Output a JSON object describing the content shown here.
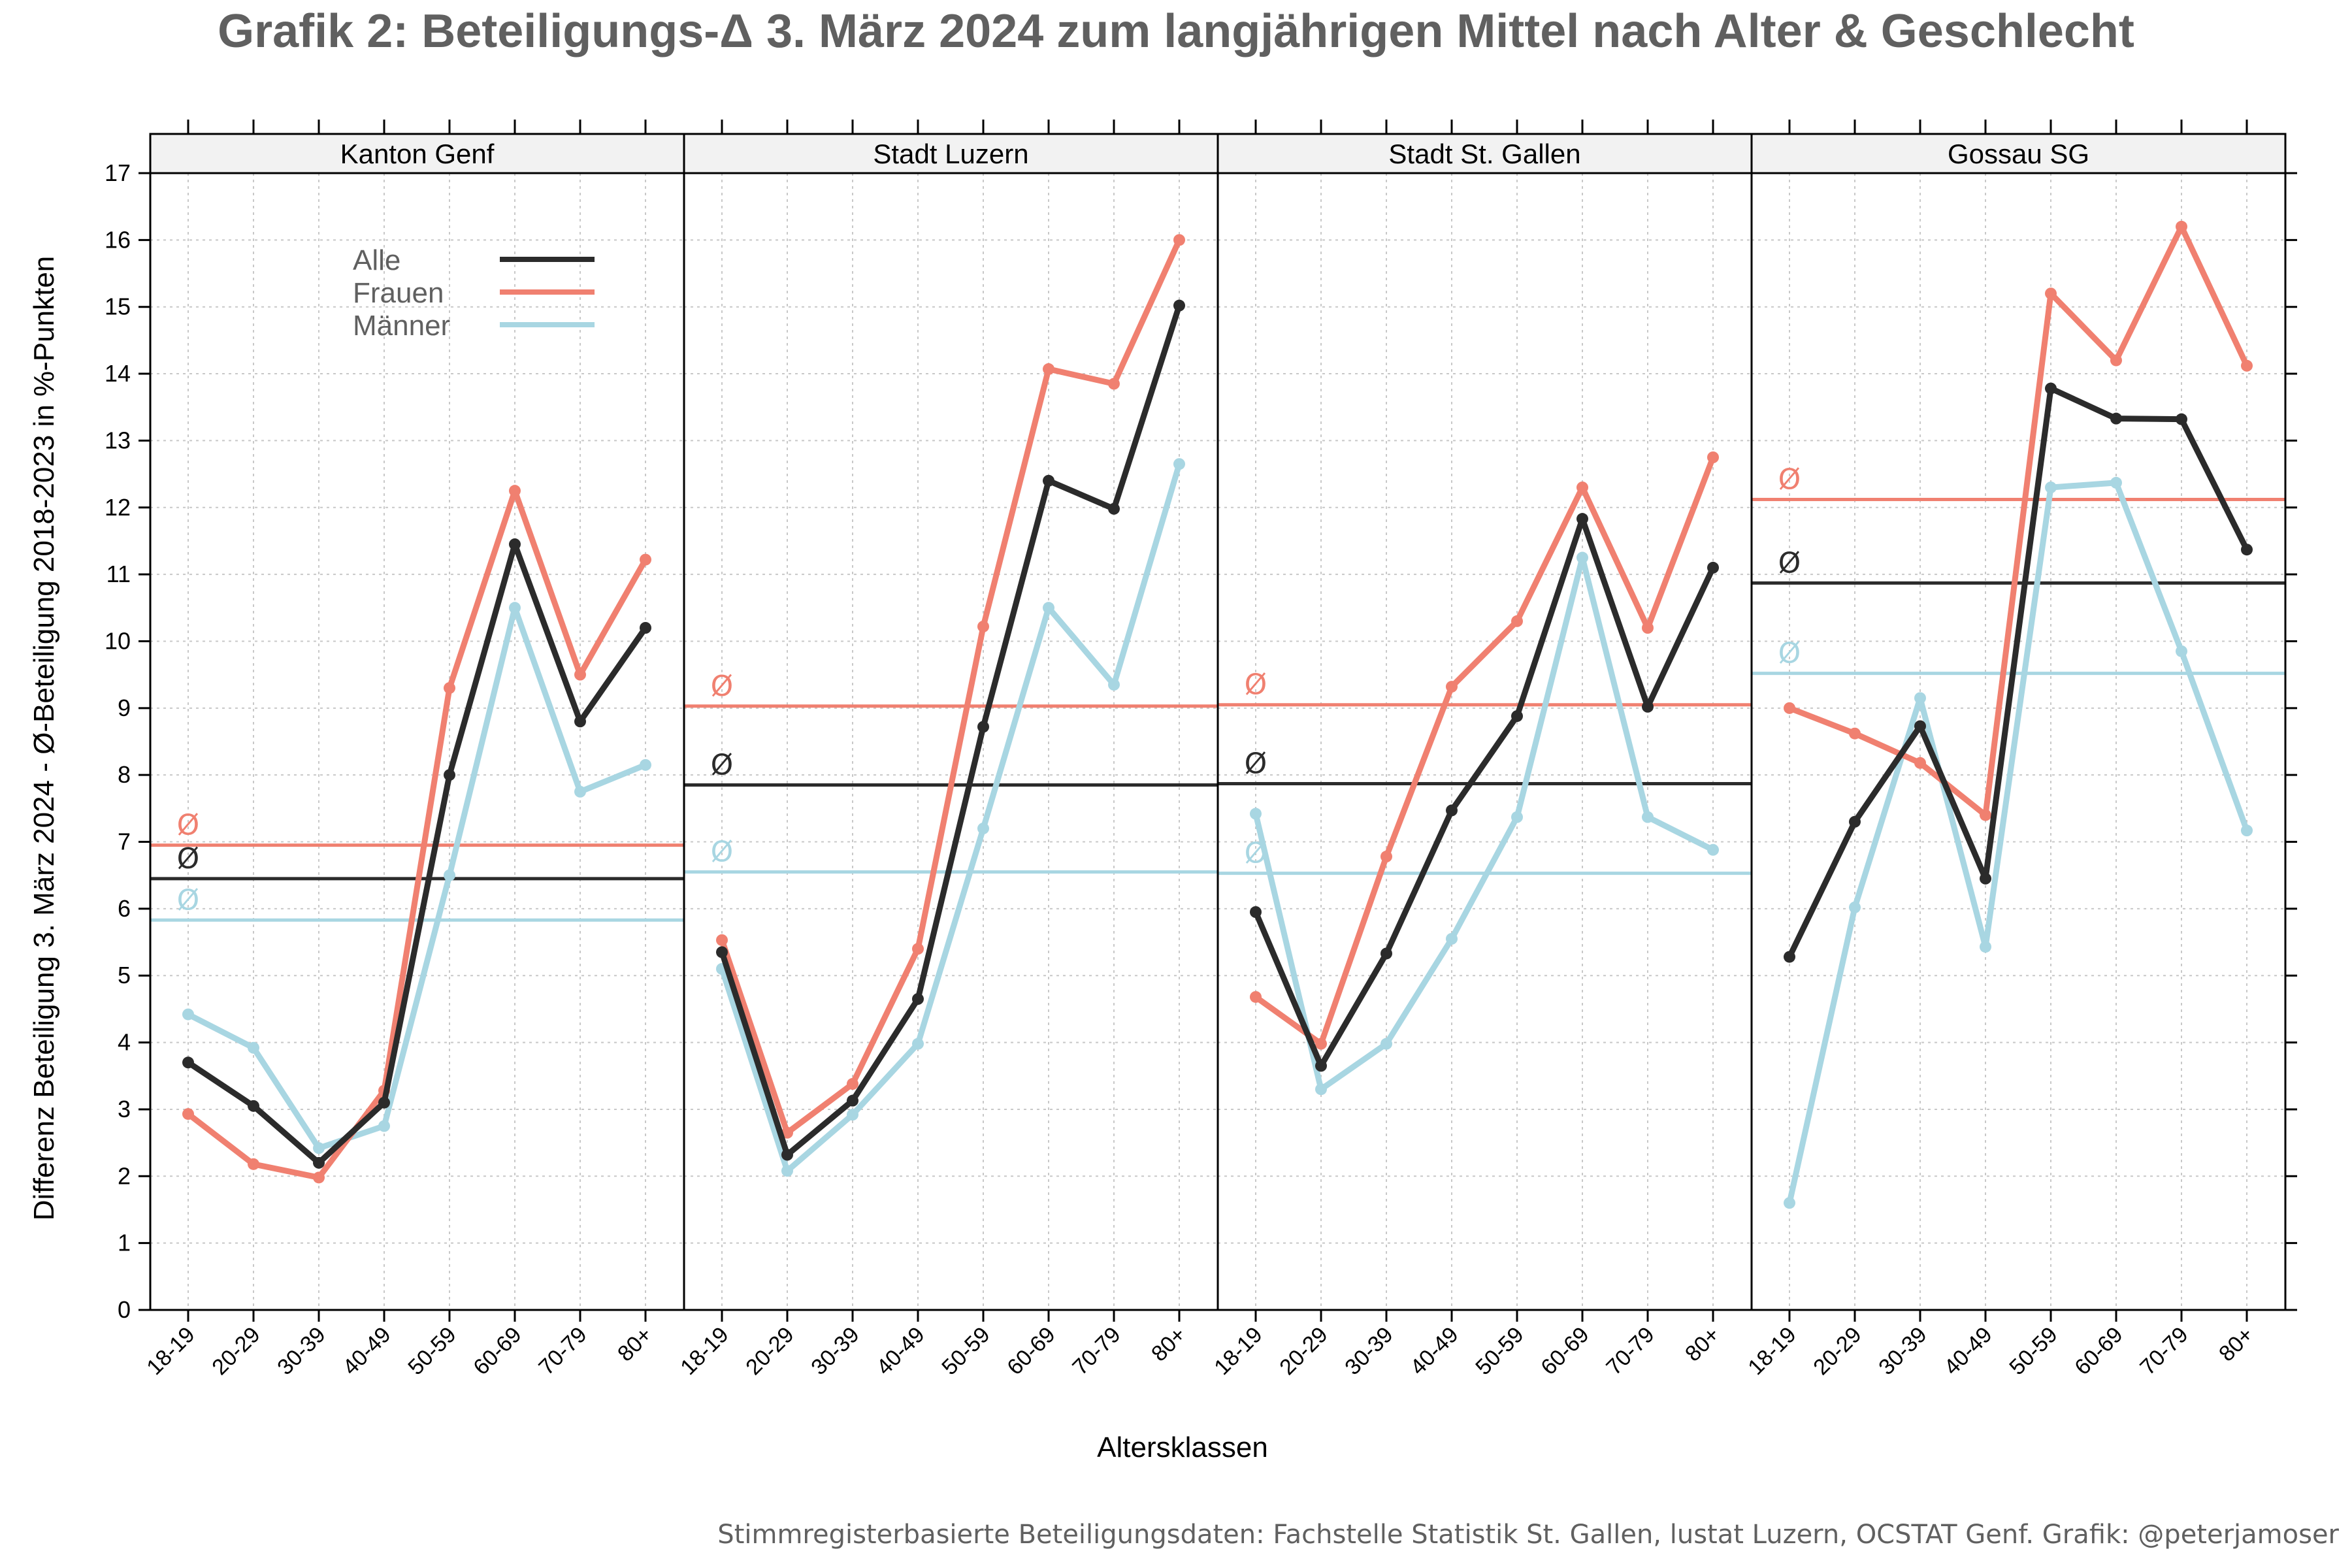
{
  "title": "Grafik 2: Beteiligungs-Δ 3. März 2024 zum langjährigen Mittel nach Alter & Geschlecht",
  "caption": "Stimmregisterbasierte Beteiligungsdaten: Fachstelle Statistik St. Gallen, lustat Luzern, OCSTAT Genf. Grafik: @peterjamoser",
  "avg_symbol": "Ø",
  "colors": {
    "Alle": "#2b2b2b",
    "Frauen": "#f08070",
    "Männer": "#a8d6e2"
  },
  "chart_data": {
    "type": "line",
    "xlabel": "Altersklassen",
    "ylabel": "Differenz Beteiligung 3. März 2024 - Ø-Beteiligung 2018-2023 in %-Punkten",
    "ylim": [
      0,
      17
    ],
    "yticks": [
      "0",
      "1",
      "2",
      "3",
      "4",
      "5",
      "6",
      "7",
      "8",
      "9",
      "10",
      "11",
      "12",
      "13",
      "14",
      "15",
      "16",
      "17"
    ],
    "categories": [
      "18-19",
      "20-29",
      "30-39",
      "40-49",
      "50-59",
      "60-69",
      "70-79",
      "80+"
    ],
    "grid": true,
    "legend": {
      "placement": "top-left (first panel)",
      "entries": [
        "Alle",
        "Frauen",
        "Männer"
      ]
    },
    "panels": [
      {
        "name": "Kanton Genf",
        "series": [
          {
            "name": "Alle",
            "values": [
              3.7,
              3.05,
              2.2,
              3.1,
              8.0,
              11.45,
              8.8,
              10.2
            ],
            "mean": 6.45
          },
          {
            "name": "Frauen",
            "values": [
              2.93,
              2.18,
              1.98,
              3.28,
              9.3,
              12.25,
              9.5,
              11.22
            ],
            "mean": 6.95
          },
          {
            "name": "Männer",
            "values": [
              4.42,
              3.92,
              2.42,
              2.75,
              6.5,
              10.5,
              7.75,
              8.15
            ],
            "mean": 5.83
          }
        ]
      },
      {
        "name": "Stadt Luzern",
        "series": [
          {
            "name": "Alle",
            "values": [
              5.35,
              2.32,
              3.13,
              4.65,
              8.72,
              12.4,
              11.98,
              15.02
            ],
            "mean": 7.85
          },
          {
            "name": "Frauen",
            "values": [
              5.53,
              2.65,
              3.38,
              5.4,
              10.22,
              14.07,
              13.85,
              16.0
            ],
            "mean": 9.03
          },
          {
            "name": "Männer",
            "values": [
              5.1,
              2.08,
              2.92,
              3.98,
              7.2,
              10.5,
              9.35,
              12.65
            ],
            "mean": 6.55
          }
        ]
      },
      {
        "name": "Stadt St. Gallen",
        "series": [
          {
            "name": "Alle",
            "values": [
              5.95,
              3.65,
              5.33,
              7.47,
              8.88,
              11.83,
              9.02,
              11.1
            ],
            "mean": 7.87
          },
          {
            "name": "Frauen",
            "values": [
              4.68,
              3.98,
              6.78,
              9.32,
              10.3,
              12.3,
              10.2,
              12.75
            ],
            "mean": 9.05
          },
          {
            "name": "Männer",
            "values": [
              7.42,
              3.3,
              3.98,
              5.55,
              7.37,
              11.25,
              7.37,
              6.88
            ],
            "mean": 6.53
          }
        ]
      },
      {
        "name": "Gossau SG",
        "series": [
          {
            "name": "Alle",
            "values": [
              5.28,
              7.3,
              8.73,
              6.45,
              13.78,
              13.33,
              13.32,
              11.37
            ],
            "mean": 10.87
          },
          {
            "name": "Frauen",
            "values": [
              9.0,
              8.62,
              8.18,
              7.4,
              15.2,
              14.2,
              16.2,
              14.12
            ],
            "mean": 12.12
          },
          {
            "name": "Männer",
            "values": [
              1.6,
              6.02,
              9.15,
              5.43,
              12.3,
              12.37,
              9.85,
              7.17
            ],
            "mean": 9.52
          }
        ]
      }
    ]
  }
}
